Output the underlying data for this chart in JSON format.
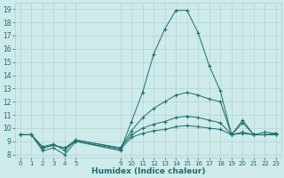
{
  "xlabel": "Humidex (Indice chaleur)",
  "background_color": "#ceeaea",
  "line_color": "#1a6e6a",
  "grid_color": "#aecece",
  "ylim": [
    7.8,
    19.5
  ],
  "yticks": [
    8,
    9,
    10,
    11,
    12,
    13,
    14,
    15,
    16,
    17,
    18,
    19
  ],
  "xticks": [
    0,
    1,
    2,
    3,
    4,
    5,
    9,
    10,
    11,
    12,
    13,
    14,
    15,
    16,
    17,
    18,
    19,
    20,
    21,
    22,
    23
  ],
  "xlim": [
    -0.5,
    23.5
  ],
  "lines": [
    {
      "x": [
        0,
        1,
        2,
        3,
        4,
        5,
        9,
        10,
        11,
        12,
        13,
        14,
        15,
        16,
        17,
        18,
        19,
        20,
        21,
        22,
        23
      ],
      "y": [
        9.5,
        9.5,
        8.3,
        8.5,
        8.0,
        9.0,
        8.3,
        10.5,
        12.7,
        15.6,
        17.5,
        18.9,
        18.9,
        17.2,
        14.7,
        12.8,
        9.5,
        10.6,
        9.5,
        9.7,
        9.6
      ]
    },
    {
      "x": [
        0,
        1,
        2,
        3,
        4,
        5,
        9,
        10,
        11,
        12,
        13,
        14,
        15,
        16,
        17,
        18,
        19,
        20,
        21,
        22,
        23
      ],
      "y": [
        9.5,
        9.5,
        8.6,
        8.8,
        8.3,
        9.1,
        8.5,
        9.8,
        10.8,
        11.5,
        12.0,
        12.5,
        12.7,
        12.5,
        12.2,
        12.0,
        9.5,
        10.4,
        9.5,
        9.5,
        9.6
      ]
    },
    {
      "x": [
        0,
        1,
        2,
        3,
        4,
        5,
        9,
        10,
        11,
        12,
        13,
        14,
        15,
        16,
        17,
        18,
        19,
        20,
        21,
        22,
        23
      ],
      "y": [
        9.5,
        9.5,
        8.5,
        8.7,
        8.5,
        9.1,
        8.5,
        9.5,
        10.0,
        10.3,
        10.5,
        10.8,
        10.9,
        10.8,
        10.6,
        10.4,
        9.5,
        9.7,
        9.5,
        9.5,
        9.5
      ]
    },
    {
      "x": [
        0,
        1,
        2,
        3,
        4,
        5,
        9,
        10,
        11,
        12,
        13,
        14,
        15,
        16,
        17,
        18,
        19,
        20,
        21,
        22,
        23
      ],
      "y": [
        9.5,
        9.5,
        8.5,
        8.7,
        8.5,
        9.0,
        8.4,
        9.3,
        9.6,
        9.8,
        9.9,
        10.1,
        10.2,
        10.1,
        10.0,
        9.9,
        9.5,
        9.6,
        9.5,
        9.5,
        9.5
      ]
    }
  ]
}
